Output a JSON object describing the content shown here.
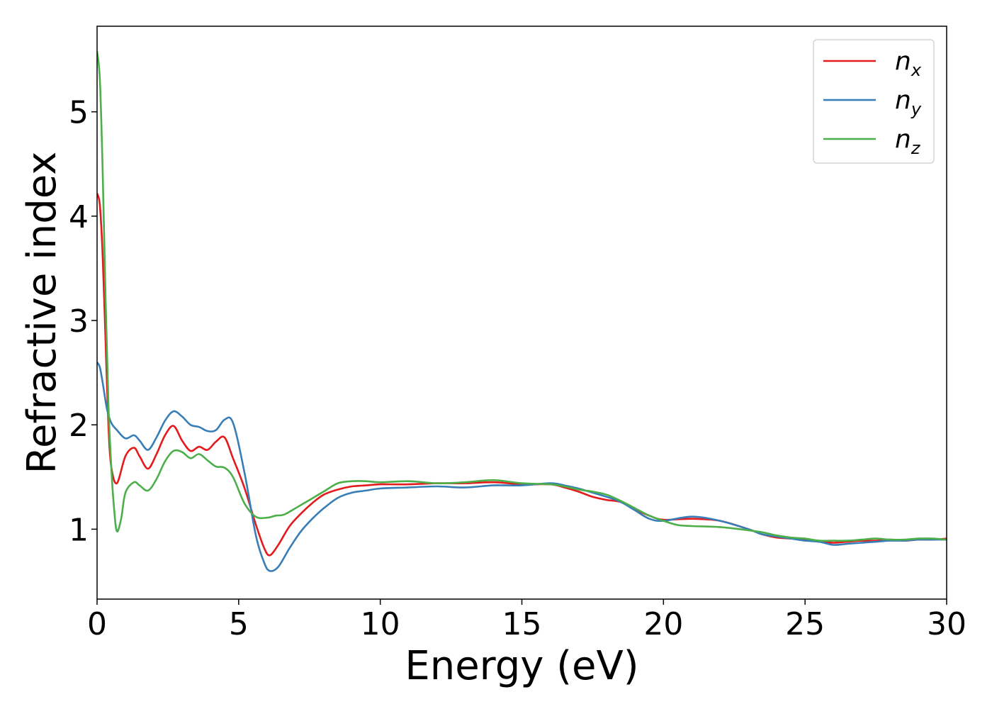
{
  "chart_data": {
    "type": "line",
    "xlabel": "Energy (eV)",
    "ylabel": "Refractive index",
    "xlim": [
      0,
      30
    ],
    "ylim": [
      0.33,
      5.82
    ],
    "xticks": [
      0,
      5,
      10,
      15,
      20,
      25,
      30
    ],
    "yticks": [
      1,
      2,
      3,
      4,
      5
    ],
    "grid": false,
    "legend_position": "top-right",
    "series": [
      {
        "name": "n_x",
        "label_main": "n",
        "label_sub": "x",
        "color": "#e41a1c",
        "x": [
          0,
          0.1,
          0.2,
          0.3,
          0.4,
          0.5,
          0.7,
          1.0,
          1.3,
          1.5,
          1.8,
          2.1,
          2.4,
          2.7,
          3.0,
          3.3,
          3.6,
          3.9,
          4.2,
          4.5,
          4.8,
          5.2,
          5.6,
          5.9,
          6.1,
          6.4,
          6.8,
          7.2,
          7.6,
          8.0,
          8.5,
          9.0,
          9.5,
          10,
          11,
          12,
          13,
          14,
          15,
          16,
          16.5,
          17,
          17.5,
          18,
          18.5,
          19,
          19.5,
          20,
          21,
          22,
          23,
          23.5,
          24,
          24.5,
          25,
          25.5,
          26,
          26.5,
          27,
          27.5,
          28,
          28.5,
          29,
          29.5,
          30
        ],
        "y": [
          4.22,
          4.1,
          3.6,
          2.8,
          2.0,
          1.6,
          1.44,
          1.7,
          1.78,
          1.7,
          1.58,
          1.72,
          1.9,
          1.99,
          1.85,
          1.75,
          1.79,
          1.76,
          1.84,
          1.88,
          1.68,
          1.4,
          1.05,
          0.82,
          0.75,
          0.85,
          1.03,
          1.15,
          1.25,
          1.33,
          1.38,
          1.41,
          1.42,
          1.43,
          1.43,
          1.44,
          1.44,
          1.45,
          1.43,
          1.43,
          1.4,
          1.36,
          1.31,
          1.28,
          1.26,
          1.19,
          1.13,
          1.09,
          1.1,
          1.08,
          1.0,
          0.95,
          0.92,
          0.91,
          0.9,
          0.88,
          0.87,
          0.88,
          0.89,
          0.89,
          0.9,
          0.89,
          0.9,
          0.9,
          0.91
        ]
      },
      {
        "name": "n_y",
        "label_main": "n",
        "label_sub": "y",
        "color": "#377eb8",
        "x": [
          0,
          0.1,
          0.2,
          0.35,
          0.5,
          0.7,
          1.0,
          1.3,
          1.5,
          1.8,
          2.1,
          2.4,
          2.7,
          3.0,
          3.3,
          3.6,
          3.9,
          4.2,
          4.5,
          4.8,
          5.2,
          5.6,
          5.9,
          6.1,
          6.4,
          6.8,
          7.2,
          7.6,
          8.0,
          8.5,
          9.0,
          9.5,
          10,
          11,
          12,
          13,
          14,
          15,
          16,
          16.5,
          17,
          17.5,
          18,
          18.5,
          19,
          19.5,
          20,
          21,
          22,
          23,
          23.5,
          24,
          24.5,
          25,
          25.5,
          26,
          26.5,
          27,
          27.5,
          28,
          28.5,
          29,
          29.5,
          30
        ],
        "y": [
          2.6,
          2.55,
          2.4,
          2.15,
          2.02,
          1.95,
          1.87,
          1.9,
          1.85,
          1.76,
          1.88,
          2.04,
          2.13,
          2.08,
          2.0,
          1.98,
          1.94,
          1.95,
          2.05,
          2.02,
          1.55,
          0.95,
          0.68,
          0.6,
          0.64,
          0.82,
          0.98,
          1.1,
          1.2,
          1.3,
          1.35,
          1.37,
          1.39,
          1.4,
          1.41,
          1.4,
          1.42,
          1.42,
          1.44,
          1.42,
          1.39,
          1.35,
          1.31,
          1.26,
          1.18,
          1.1,
          1.08,
          1.12,
          1.08,
          1.0,
          0.95,
          0.93,
          0.91,
          0.89,
          0.88,
          0.85,
          0.86,
          0.87,
          0.88,
          0.89,
          0.89,
          0.9,
          0.9,
          0.9
        ]
      },
      {
        "name": "n_z",
        "label_main": "n",
        "label_sub": "z",
        "color": "#4daf4a",
        "x": [
          0,
          0.1,
          0.2,
          0.3,
          0.4,
          0.5,
          0.6,
          0.7,
          0.85,
          1.0,
          1.3,
          1.5,
          1.8,
          2.1,
          2.4,
          2.7,
          3.0,
          3.3,
          3.6,
          3.9,
          4.2,
          4.5,
          4.8,
          5.2,
          5.6,
          6.0,
          6.3,
          6.6,
          7.0,
          7.5,
          8.0,
          8.5,
          9.0,
          9.5,
          10,
          11,
          12,
          13,
          14,
          15,
          16,
          16.5,
          17,
          17.5,
          18,
          18.5,
          19,
          19.5,
          20,
          20.5,
          21,
          22,
          23,
          23.5,
          24,
          24.5,
          25,
          25.5,
          26,
          26.5,
          27,
          27.5,
          28,
          28.5,
          29,
          29.5,
          30
        ],
        "y": [
          5.58,
          5.3,
          4.4,
          3.2,
          2.2,
          1.6,
          1.2,
          0.98,
          1.1,
          1.35,
          1.45,
          1.42,
          1.37,
          1.48,
          1.65,
          1.75,
          1.74,
          1.68,
          1.72,
          1.66,
          1.6,
          1.59,
          1.5,
          1.25,
          1.12,
          1.11,
          1.13,
          1.14,
          1.2,
          1.28,
          1.36,
          1.44,
          1.46,
          1.46,
          1.45,
          1.46,
          1.44,
          1.45,
          1.47,
          1.44,
          1.43,
          1.41,
          1.38,
          1.36,
          1.33,
          1.27,
          1.2,
          1.13,
          1.08,
          1.04,
          1.03,
          1.02,
          0.99,
          0.97,
          0.94,
          0.92,
          0.91,
          0.89,
          0.89,
          0.89,
          0.9,
          0.91,
          0.9,
          0.9,
          0.91,
          0.91,
          0.9
        ]
      }
    ]
  }
}
